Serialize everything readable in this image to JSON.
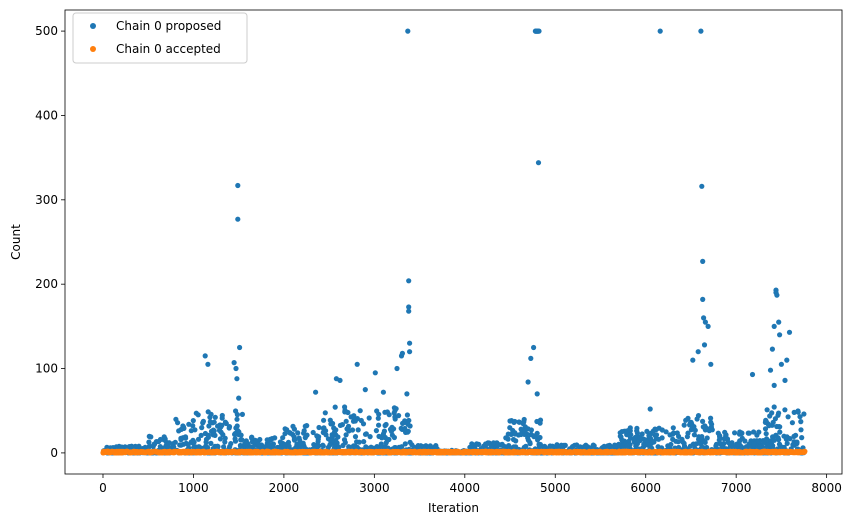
{
  "chart_data": {
    "type": "scatter",
    "xlabel": "Iteration",
    "ylabel": "Count",
    "xlim": [
      -420,
      8170
    ],
    "ylim": [
      -25,
      525
    ],
    "xticks": [
      0,
      1000,
      2000,
      3000,
      4000,
      5000,
      6000,
      7000,
      8000
    ],
    "yticks": [
      0,
      100,
      200,
      300,
      400,
      500
    ],
    "legend_position": "top-left",
    "grid": false,
    "colors": {
      "proposed": "#1f77b4",
      "accepted": "#ff7f0e"
    },
    "series": [
      {
        "name": "Chain 0 proposed",
        "description_of_bulk": "dense band of points between 0 and about 50 across iterations 0-7760, with heavier clusters near 800-1500, 2000-3400, 4500-4850 and 5800-7760",
        "bulk_segments": [
          {
            "x0": 0,
            "x1": 500,
            "ymax": 8
          },
          {
            "x0": 500,
            "x1": 780,
            "ymax": 20
          },
          {
            "x0": 780,
            "x1": 1550,
            "ymax": 50
          },
          {
            "x0": 1550,
            "x1": 2000,
            "ymax": 20
          },
          {
            "x0": 2000,
            "x1": 2400,
            "ymax": 35
          },
          {
            "x0": 2400,
            "x1": 3400,
            "ymax": 55
          },
          {
            "x0": 3400,
            "x1": 3700,
            "ymax": 10
          },
          {
            "x0": 3700,
            "x1": 4050,
            "ymax": 3
          },
          {
            "x0": 4050,
            "x1": 4450,
            "ymax": 12
          },
          {
            "x0": 4450,
            "x1": 4850,
            "ymax": 40
          },
          {
            "x0": 4850,
            "x1": 5700,
            "ymax": 10
          },
          {
            "x0": 5700,
            "x1": 6400,
            "ymax": 30
          },
          {
            "x0": 6400,
            "x1": 6750,
            "ymax": 45
          },
          {
            "x0": 6750,
            "x1": 7300,
            "ymax": 25
          },
          {
            "x0": 7300,
            "x1": 7760,
            "ymax": 55
          }
        ],
        "outliers": [
          [
            1130,
            115
          ],
          [
            1160,
            105
          ],
          [
            1450,
            107
          ],
          [
            1480,
            88
          ],
          [
            1490,
            317
          ],
          [
            1490,
            277
          ],
          [
            1510,
            125
          ],
          [
            1500,
            65
          ],
          [
            1470,
            100
          ],
          [
            2350,
            72
          ],
          [
            2580,
            88
          ],
          [
            2620,
            86
          ],
          [
            2810,
            105
          ],
          [
            2900,
            75
          ],
          [
            3010,
            95
          ],
          [
            3100,
            72
          ],
          [
            3250,
            100
          ],
          [
            3300,
            115
          ],
          [
            3310,
            118
          ],
          [
            3370,
            500
          ],
          [
            3380,
            204
          ],
          [
            3380,
            173
          ],
          [
            3380,
            168
          ],
          [
            3390,
            130
          ],
          [
            3390,
            120
          ],
          [
            3360,
            70
          ],
          [
            4700,
            84
          ],
          [
            4730,
            112
          ],
          [
            4760,
            125
          ],
          [
            4780,
            500
          ],
          [
            4785,
            500
          ],
          [
            4790,
            500
          ],
          [
            4800,
            500
          ],
          [
            4805,
            500
          ],
          [
            4810,
            500
          ],
          [
            4820,
            500
          ],
          [
            4815,
            344
          ],
          [
            4800,
            70
          ],
          [
            6160,
            500
          ],
          [
            6050,
            52
          ],
          [
            6520,
            110
          ],
          [
            6580,
            120
          ],
          [
            6610,
            500
          ],
          [
            6620,
            316
          ],
          [
            6630,
            227
          ],
          [
            6630,
            182
          ],
          [
            6640,
            160
          ],
          [
            6650,
            128
          ],
          [
            6660,
            155
          ],
          [
            6690,
            150
          ],
          [
            6720,
            105
          ],
          [
            7180,
            93
          ],
          [
            7380,
            98
          ],
          [
            7400,
            123
          ],
          [
            7420,
            150
          ],
          [
            7440,
            193
          ],
          [
            7440,
            190
          ],
          [
            7450,
            187
          ],
          [
            7470,
            155
          ],
          [
            7480,
            140
          ],
          [
            7500,
            105
          ],
          [
            7560,
            110
          ],
          [
            7590,
            143
          ],
          [
            7540,
            86
          ],
          [
            7420,
            80
          ]
        ]
      },
      {
        "name": "Chain 0 accepted",
        "description_of_bulk": "flat band of points at values 0 to 2 across iterations 0-7760",
        "x_range": [
          0,
          7760
        ],
        "y_range": [
          0,
          2
        ]
      }
    ]
  }
}
